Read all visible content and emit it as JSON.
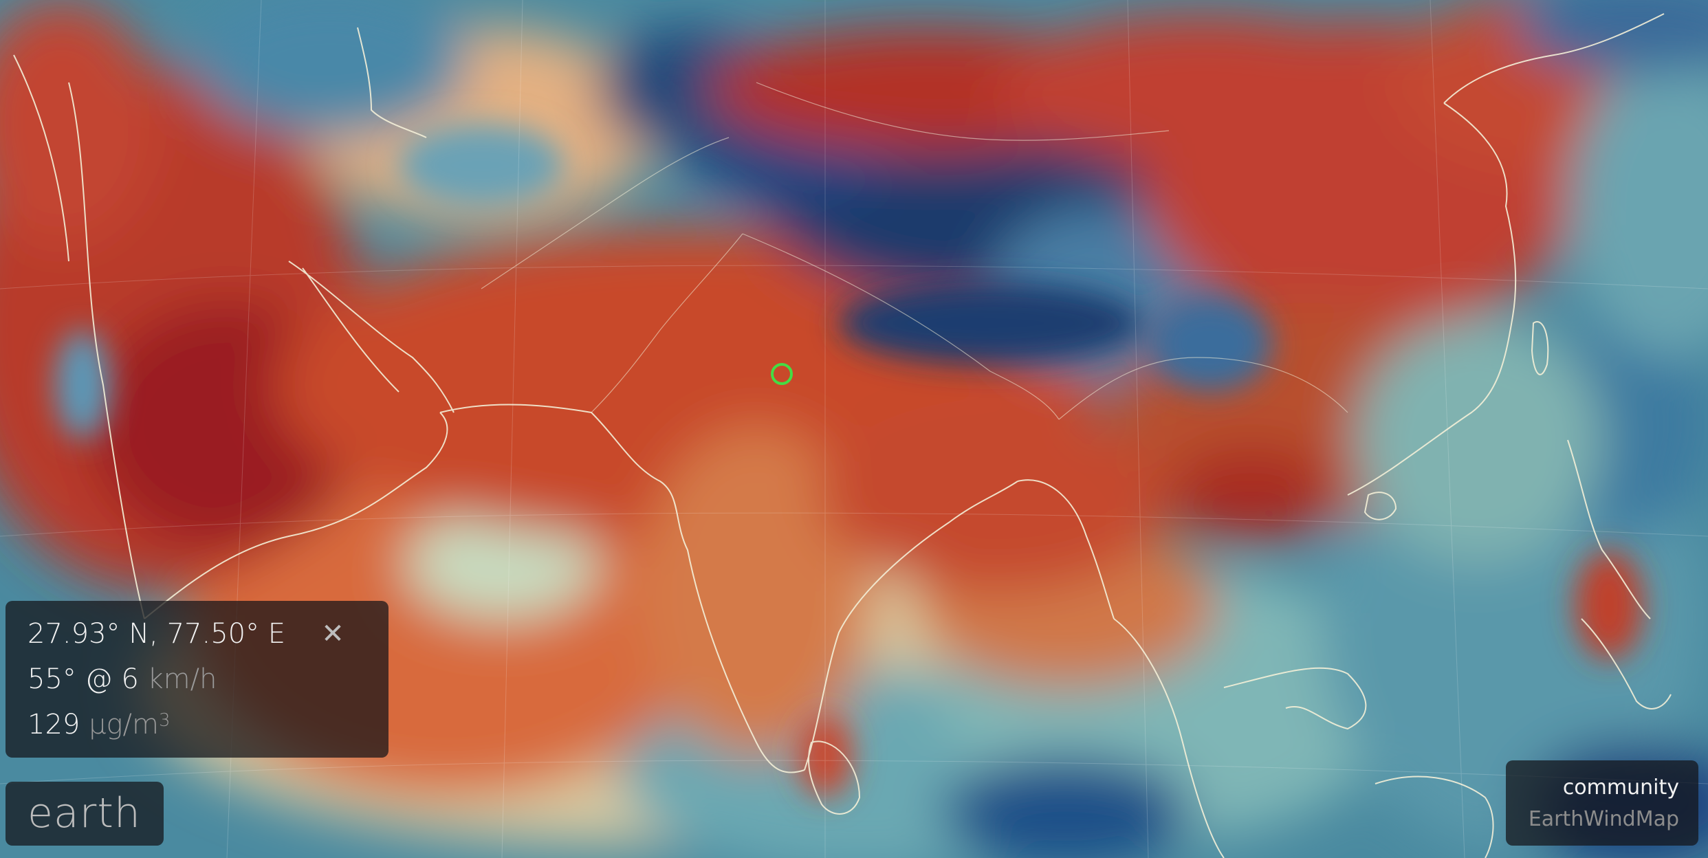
{
  "location": {
    "coordinates": "27.93° N, 77.50° E",
    "close_symbol": "✕"
  },
  "wind": {
    "direction_speed": "55° @ 6",
    "unit": "km/h"
  },
  "particulates": {
    "value": "129",
    "unit": "μg/m",
    "unit_exponent": "3"
  },
  "brand": {
    "label": "earth"
  },
  "footer": {
    "community": "community",
    "earthwindmap": "EarthWindMap"
  },
  "colors": {
    "high": "#b8352a",
    "medium": "#e0a070",
    "low": "#78b4b4",
    "very_low": "#1a3a6c",
    "marker": "#44dd44",
    "coastline": "#f4f0d8"
  }
}
